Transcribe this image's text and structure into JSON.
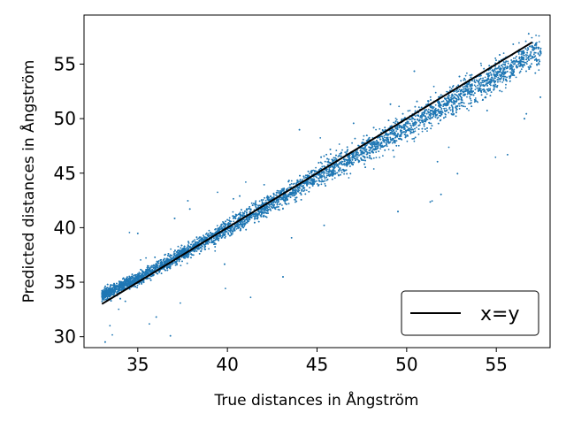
{
  "chart_data": {
    "type": "scatter",
    "xlabel": "True distances in Ångström",
    "ylabel": "Predicted distances in Ångström",
    "xlim": [
      32.0,
      58.0
    ],
    "ylim": [
      29.0,
      59.5
    ],
    "xticks": [
      35,
      40,
      45,
      50,
      55
    ],
    "yticks": [
      30,
      35,
      40,
      45,
      50,
      55
    ],
    "grid": false,
    "legend_position": "lower-right",
    "series": [
      {
        "kind": "scatter",
        "color": "#1f77b4",
        "marker": "dot",
        "description": "dense cloud of predicted vs true distances, roughly 8000 points along the diagonal, slight underprediction at larger distances",
        "approx_trend": [
          {
            "x": 33.0,
            "y": 33.8
          },
          {
            "x": 35.0,
            "y": 35.3
          },
          {
            "x": 40.0,
            "y": 39.9
          },
          {
            "x": 45.0,
            "y": 44.7
          },
          {
            "x": 50.0,
            "y": 49.3
          },
          {
            "x": 55.0,
            "y": 53.9
          },
          {
            "x": 57.0,
            "y": 56.0
          }
        ],
        "x_range": [
          33.0,
          57.5
        ],
        "approx_point_count": 8000
      },
      {
        "kind": "line",
        "name": "x=y",
        "color": "#000000",
        "x": [
          33.0,
          57.0
        ],
        "y": [
          33.0,
          57.0
        ]
      }
    ]
  }
}
